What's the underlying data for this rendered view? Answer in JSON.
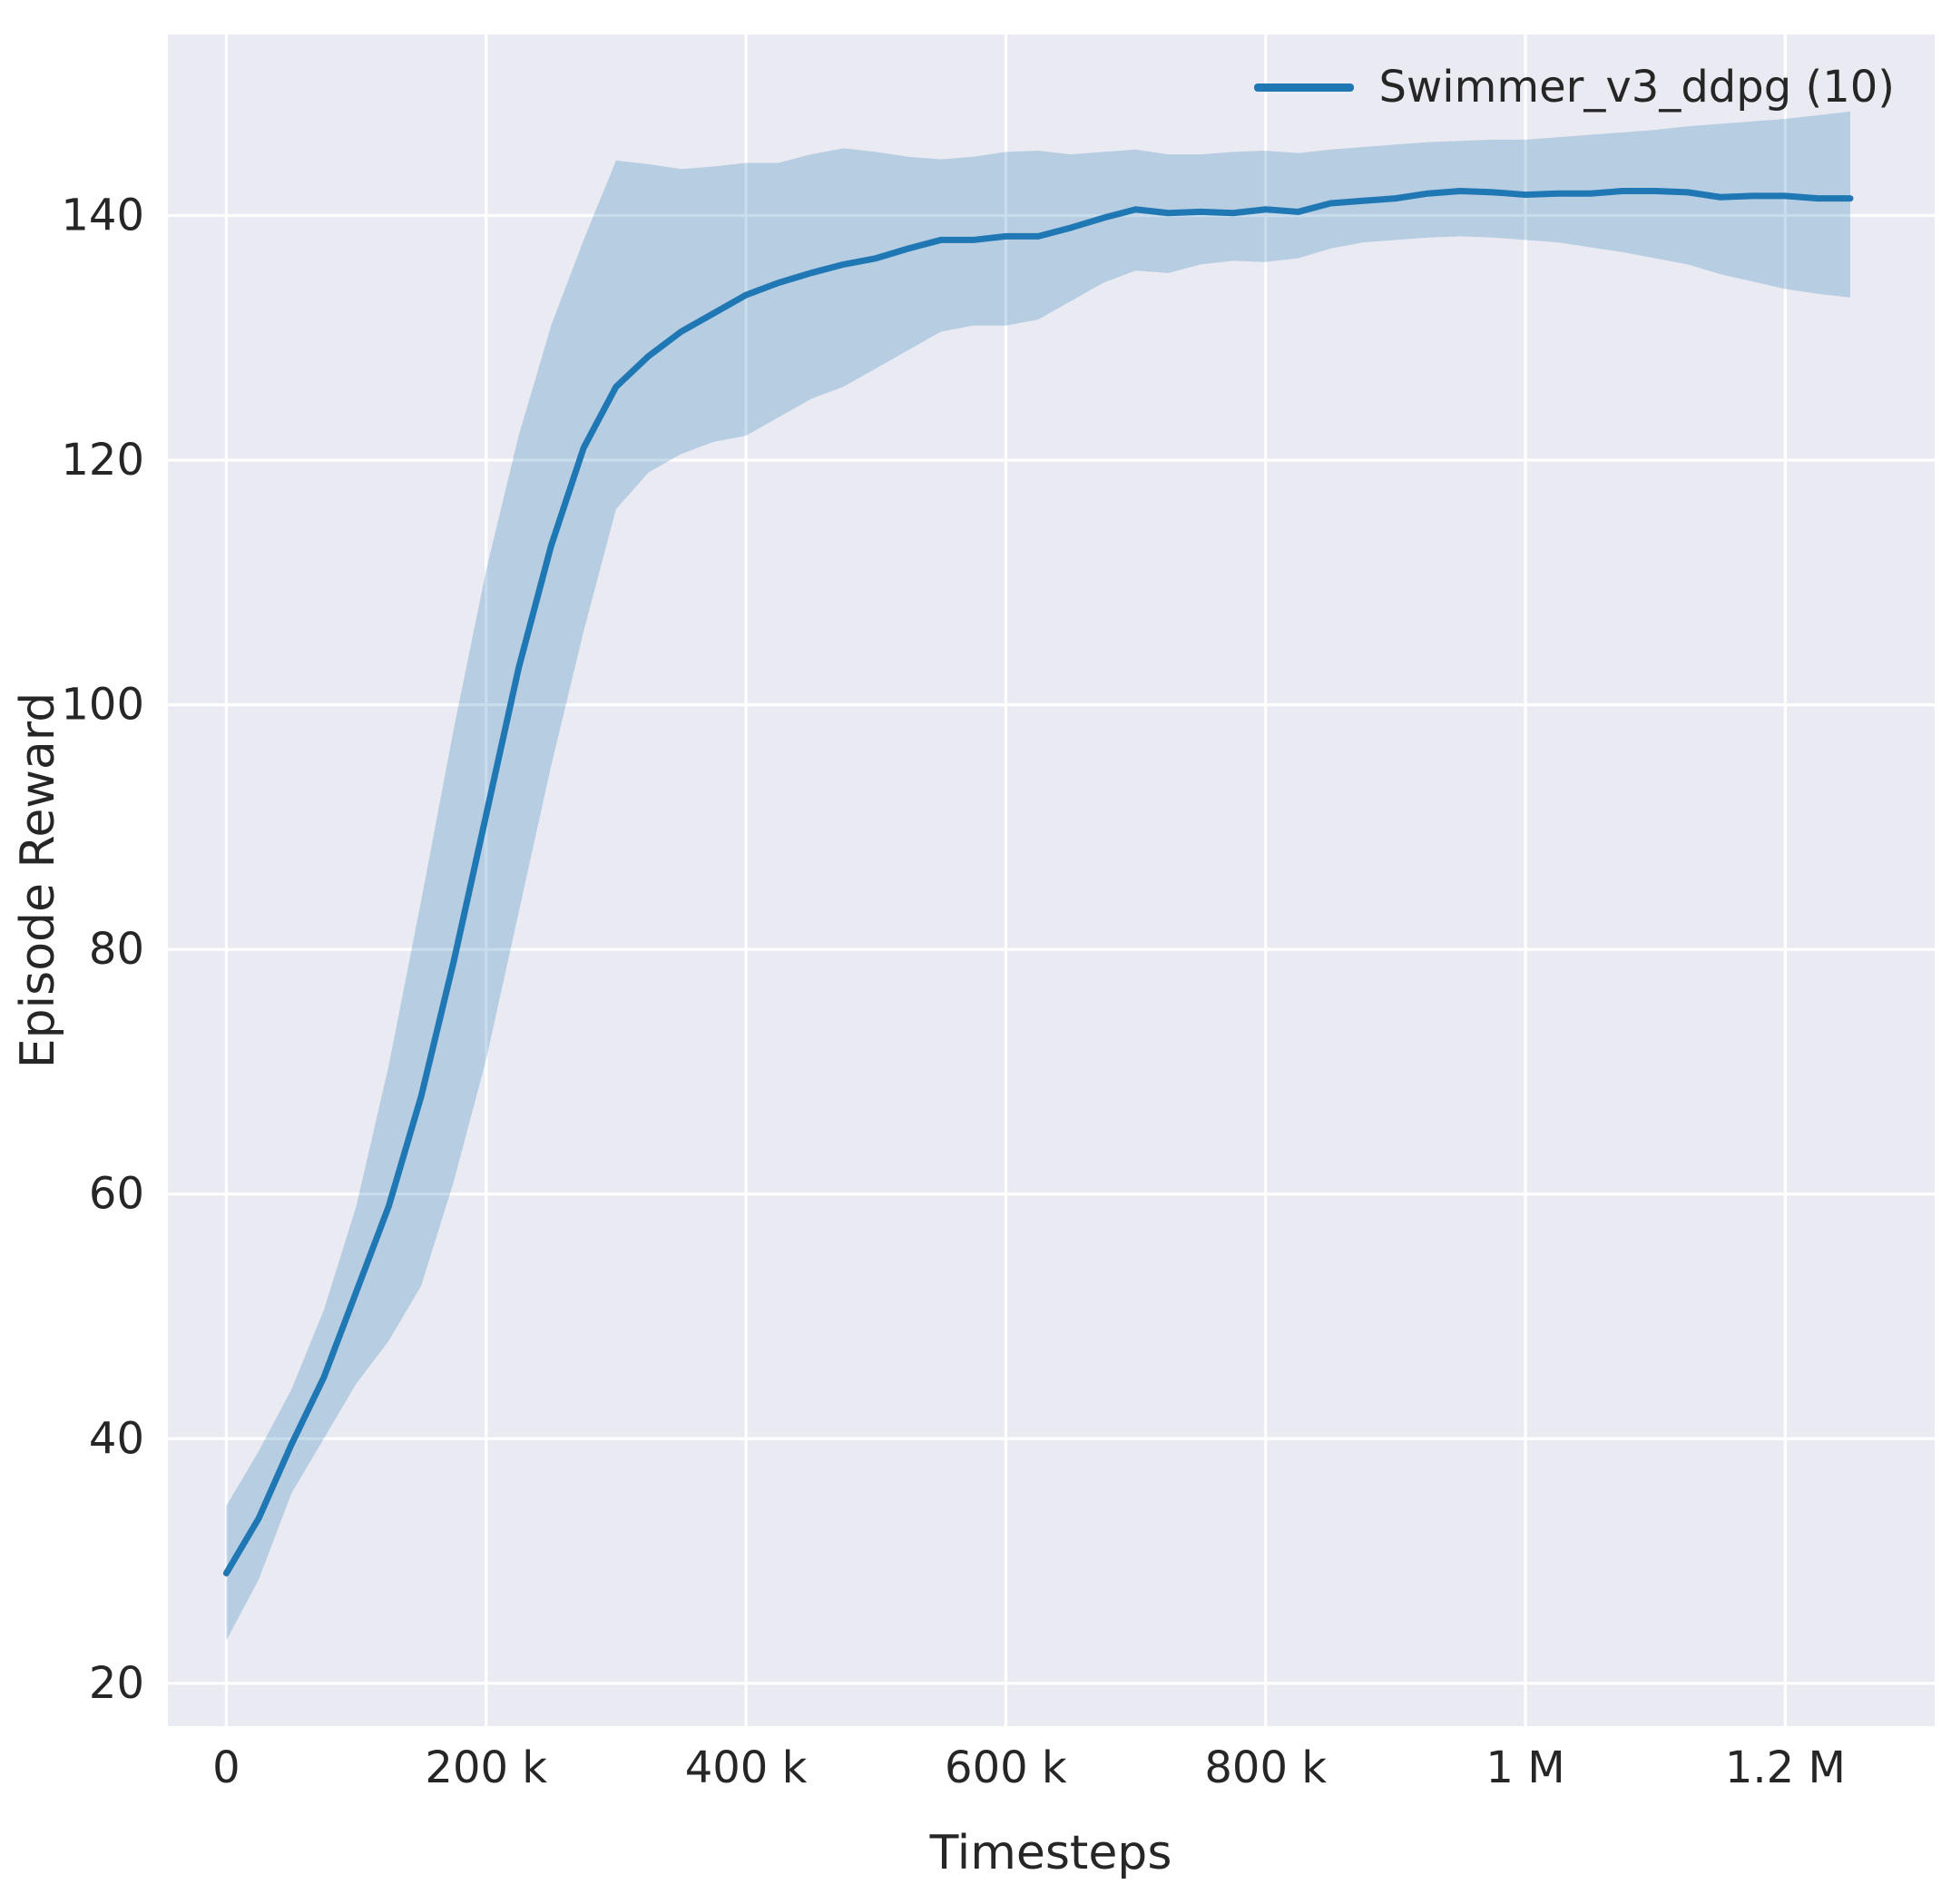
{
  "chart_data": {
    "type": "line",
    "title": "",
    "xlabel": "Timesteps",
    "ylabel": "Episode Reward",
    "xlim": [
      -45000,
      1315000
    ],
    "ylim": [
      16.5,
      154.8
    ],
    "grid": true,
    "legend_position": "upper right",
    "background_color": "#eaeaf2",
    "grid_color": "#ffffff",
    "text_color": "#262626",
    "x_ticks": [
      0,
      200000,
      400000,
      600000,
      800000,
      1000000,
      1200000
    ],
    "x_tick_labels": [
      "0",
      "200 k",
      "400 k",
      "600 k",
      "800 k",
      "1 M",
      "1.2 M"
    ],
    "y_ticks": [
      20,
      40,
      60,
      80,
      100,
      120,
      140
    ],
    "y_tick_labels": [
      "20",
      "40",
      "60",
      "80",
      "100",
      "120",
      "140"
    ],
    "x": [
      0,
      25000,
      50000,
      75000,
      100000,
      125000,
      150000,
      175000,
      200000,
      225000,
      250000,
      275000,
      300000,
      325000,
      350000,
      375000,
      400000,
      425000,
      450000,
      475000,
      500000,
      525000,
      550000,
      575000,
      600000,
      625000,
      650000,
      675000,
      700000,
      725000,
      750000,
      775000,
      800000,
      825000,
      850000,
      875000,
      900000,
      925000,
      950000,
      975000,
      1000000,
      1025000,
      1050000,
      1075000,
      1100000,
      1125000,
      1150000,
      1175000,
      1200000,
      1225000,
      1250000
    ],
    "series": [
      {
        "name": "Swimmer_v3_ddpg (10)",
        "color": "#1f77b4",
        "band_opacity": 0.25,
        "mean": [
          29,
          33.5,
          39.5,
          45,
          52,
          59,
          68,
          79,
          91,
          103,
          113,
          121,
          126,
          128.5,
          130.5,
          132,
          133.5,
          134.5,
          135.3,
          136,
          136.5,
          137.3,
          138,
          138,
          138.3,
          138.3,
          139,
          139.8,
          140.5,
          140.2,
          140.3,
          140.2,
          140.5,
          140.3,
          141,
          141.2,
          141.4,
          141.8,
          142,
          141.9,
          141.7,
          141.8,
          141.8,
          142,
          142,
          141.9,
          141.5,
          141.6,
          141.6,
          141.4,
          141.4
        ],
        "lower": [
          23.5,
          28.5,
          35.5,
          40,
          44.5,
          48,
          52.5,
          61,
          71,
          83,
          95,
          106,
          116,
          119,
          120.5,
          121.5,
          122,
          123.5,
          125,
          126,
          127.5,
          129,
          130.5,
          131,
          131,
          131.5,
          133,
          134.5,
          135.5,
          135.3,
          136,
          136.3,
          136.2,
          136.5,
          137.3,
          137.8,
          138,
          138.2,
          138.3,
          138.2,
          138,
          137.8,
          137.4,
          137,
          136.5,
          136,
          135.2,
          134.6,
          134,
          133.6,
          133.3
        ],
        "upper": [
          34.5,
          39,
          44,
          50.5,
          59,
          70.5,
          84,
          98,
          111,
          122,
          131,
          138,
          144.5,
          144.2,
          143.8,
          144,
          144.3,
          144.3,
          145,
          145.5,
          145.2,
          144.8,
          144.6,
          144.8,
          145.2,
          145.3,
          145,
          145.2,
          145.4,
          145,
          145,
          145.2,
          145.3,
          145.1,
          145.4,
          145.6,
          145.8,
          146,
          146.1,
          146.2,
          146.2,
          146.4,
          146.6,
          146.8,
          147,
          147.3,
          147.5,
          147.7,
          147.9,
          148.2,
          148.5
        ]
      }
    ]
  }
}
